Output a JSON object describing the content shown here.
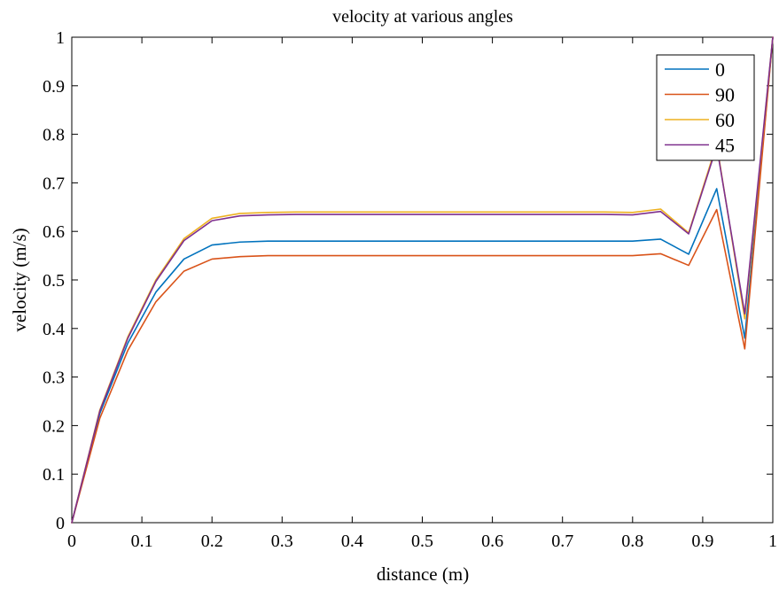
{
  "chart_data": {
    "type": "line",
    "title": "velocity at various angles",
    "xlabel": "distance (m)",
    "ylabel": "velocity (m/s)",
    "xlim": [
      0,
      1
    ],
    "ylim": [
      0,
      1
    ],
    "x_ticks": [
      "0",
      "0.1",
      "0.2",
      "0.3",
      "0.4",
      "0.5",
      "0.6",
      "0.7",
      "0.8",
      "0.9",
      "1"
    ],
    "y_ticks": [
      "0",
      "0.1",
      "0.2",
      "0.3",
      "0.4",
      "0.5",
      "0.6",
      "0.7",
      "0.8",
      "0.9",
      "1"
    ],
    "grid": false,
    "legend_position": "top-right",
    "x": [
      0,
      0.04,
      0.08,
      0.12,
      0.16,
      0.2,
      0.24,
      0.28,
      0.32,
      0.36,
      0.4,
      0.44,
      0.48,
      0.52,
      0.56,
      0.6,
      0.64,
      0.68,
      0.72,
      0.76,
      0.8,
      0.84,
      0.88,
      0.92,
      0.96,
      1.0
    ],
    "series": [
      {
        "name": "0",
        "color": "#0072BD",
        "values": [
          0,
          0.225,
          0.37,
          0.475,
          0.543,
          0.572,
          0.578,
          0.58,
          0.58,
          0.58,
          0.58,
          0.58,
          0.58,
          0.58,
          0.58,
          0.58,
          0.58,
          0.58,
          0.58,
          0.58,
          0.58,
          0.584,
          0.553,
          0.688,
          0.38,
          1.0
        ]
      },
      {
        "name": "90",
        "color": "#D95319",
        "values": [
          0,
          0.215,
          0.355,
          0.455,
          0.518,
          0.543,
          0.548,
          0.55,
          0.55,
          0.55,
          0.55,
          0.55,
          0.55,
          0.55,
          0.55,
          0.55,
          0.55,
          0.55,
          0.55,
          0.55,
          0.55,
          0.554,
          0.53,
          0.645,
          0.358,
          1.0
        ]
      },
      {
        "name": "60",
        "color": "#EDB120",
        "values": [
          0,
          0.232,
          0.383,
          0.5,
          0.585,
          0.627,
          0.637,
          0.639,
          0.64,
          0.64,
          0.64,
          0.64,
          0.64,
          0.64,
          0.64,
          0.64,
          0.64,
          0.64,
          0.64,
          0.64,
          0.639,
          0.646,
          0.597,
          0.78,
          0.42,
          1.0
        ]
      },
      {
        "name": "45",
        "color": "#7E2F8E",
        "values": [
          0,
          0.23,
          0.38,
          0.497,
          0.581,
          0.622,
          0.632,
          0.634,
          0.635,
          0.635,
          0.635,
          0.635,
          0.635,
          0.635,
          0.635,
          0.635,
          0.635,
          0.635,
          0.635,
          0.635,
          0.634,
          0.641,
          0.595,
          0.775,
          0.43,
          1.0
        ]
      }
    ]
  }
}
